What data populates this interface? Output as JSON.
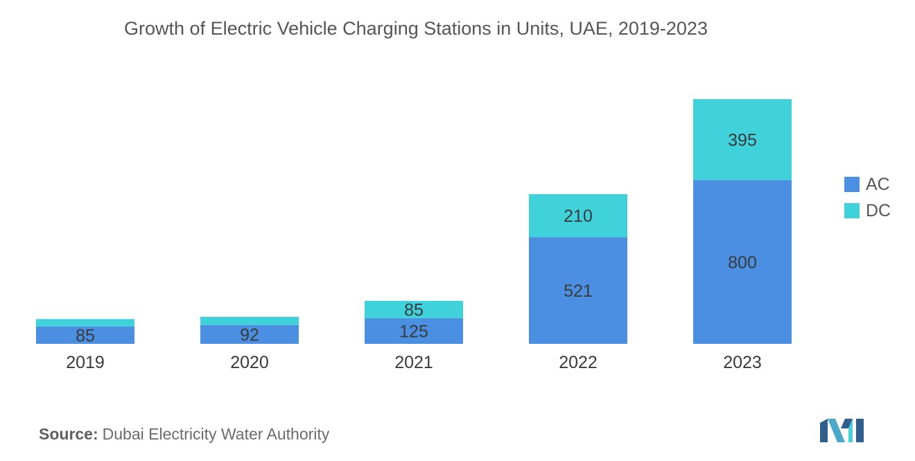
{
  "chart_data": {
    "type": "bar",
    "stacked": true,
    "title": "Growth of Electric Vehicle Charging Stations in Units, UAE, 2019-2023",
    "categories": [
      "2019",
      "2020",
      "2021",
      "2022",
      "2023"
    ],
    "series": [
      {
        "name": "AC",
        "color": "#4a8fe1",
        "values": [
          85,
          92,
          125,
          521,
          800
        ],
        "labels": [
          "85",
          "92",
          "125",
          "521",
          "800"
        ]
      },
      {
        "name": "DC",
        "color": "#40d2db",
        "values": [
          36,
          40,
          85,
          210,
          395
        ],
        "labels": [
          "",
          "",
          "85",
          "210",
          "395"
        ]
      }
    ],
    "ylim": [
      0,
      1195
    ],
    "legend_position": "right",
    "xlabel": "",
    "ylabel": ""
  },
  "source": {
    "label": "Source:",
    "text": "Dubai Electricity Water Authority"
  }
}
